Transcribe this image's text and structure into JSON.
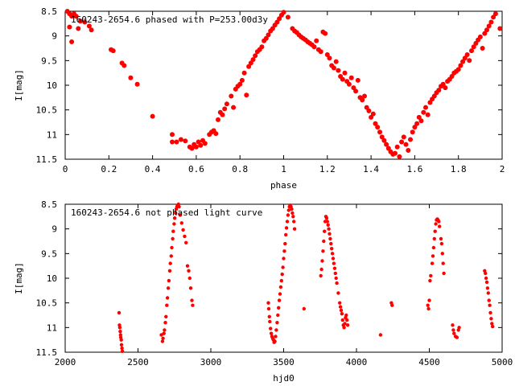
{
  "chart_data": [
    {
      "type": "scatter",
      "title": "160243-2654.6 phased with P=253.00d3y",
      "xlabel": "phase",
      "ylabel": "I[mag]",
      "xlim": [
        0,
        2
      ],
      "ylim": [
        11.5,
        8.5
      ],
      "y_inverted": true,
      "grid": false,
      "xticks": [
        "0",
        "0.2",
        "0.4",
        "0.6",
        "0.8",
        "1",
        "1.2",
        "1.4",
        "1.6",
        "1.8",
        "2"
      ],
      "yticks": [
        "8.5",
        "9",
        "9.5",
        "10",
        "10.5",
        "11",
        "11.5"
      ],
      "marker": "filled-circle",
      "color": "#ff0000",
      "points": [
        [
          0.01,
          8.5
        ],
        [
          0.02,
          8.55
        ],
        [
          0.03,
          8.6
        ],
        [
          0.04,
          8.55
        ],
        [
          0.05,
          8.6
        ],
        [
          0.02,
          8.82
        ],
        [
          0.03,
          9.12
        ],
        [
          0.06,
          8.85
        ],
        [
          0.07,
          8.7
        ],
        [
          0.09,
          8.72
        ],
        [
          0.11,
          8.8
        ],
        [
          0.12,
          8.88
        ],
        [
          0.21,
          9.28
        ],
        [
          0.22,
          9.3
        ],
        [
          0.26,
          9.55
        ],
        [
          0.27,
          9.6
        ],
        [
          0.3,
          9.85
        ],
        [
          0.33,
          9.98
        ],
        [
          0.4,
          10.63
        ],
        [
          0.49,
          11.0
        ],
        [
          0.49,
          11.15
        ],
        [
          0.51,
          11.15
        ],
        [
          0.53,
          11.1
        ],
        [
          0.55,
          11.13
        ],
        [
          0.57,
          11.25
        ],
        [
          0.58,
          11.28
        ],
        [
          0.59,
          11.2
        ],
        [
          0.6,
          11.25
        ],
        [
          0.61,
          11.15
        ],
        [
          0.62,
          11.22
        ],
        [
          0.63,
          11.12
        ],
        [
          0.64,
          11.18
        ],
        [
          0.66,
          11.0
        ],
        [
          0.67,
          10.95
        ],
        [
          0.68,
          10.92
        ],
        [
          0.69,
          10.98
        ],
        [
          0.7,
          10.7
        ],
        [
          0.71,
          10.55
        ],
        [
          0.72,
          10.6
        ],
        [
          0.73,
          10.48
        ],
        [
          0.74,
          10.38
        ],
        [
          0.76,
          10.22
        ],
        [
          0.77,
          10.45
        ],
        [
          0.78,
          10.08
        ],
        [
          0.79,
          10.02
        ],
        [
          0.8,
          9.98
        ],
        [
          0.81,
          9.9
        ],
        [
          0.82,
          9.75
        ],
        [
          0.83,
          10.2
        ],
        [
          0.84,
          9.62
        ],
        [
          0.85,
          9.55
        ],
        [
          0.86,
          9.48
        ],
        [
          0.87,
          9.4
        ],
        [
          0.88,
          9.32
        ],
        [
          0.89,
          9.28
        ],
        [
          0.9,
          9.22
        ],
        [
          0.91,
          9.1
        ],
        [
          0.92,
          9.05
        ],
        [
          0.93,
          8.98
        ],
        [
          0.94,
          8.9
        ],
        [
          0.95,
          8.85
        ],
        [
          0.96,
          8.78
        ],
        [
          0.97,
          8.72
        ],
        [
          0.98,
          8.65
        ],
        [
          0.99,
          8.58
        ],
        [
          1.0,
          8.52
        ],
        [
          1.02,
          8.62
        ],
        [
          1.04,
          8.85
        ],
        [
          1.05,
          8.9
        ],
        [
          1.06,
          8.93
        ],
        [
          1.07,
          8.98
        ],
        [
          1.08,
          9.02
        ],
        [
          1.09,
          9.05
        ],
        [
          1.1,
          9.08
        ],
        [
          1.11,
          9.12
        ],
        [
          1.12,
          9.15
        ],
        [
          1.13,
          9.18
        ],
        [
          1.14,
          9.22
        ],
        [
          1.15,
          9.1
        ],
        [
          1.16,
          9.28
        ],
        [
          1.17,
          9.32
        ],
        [
          1.18,
          8.92
        ],
        [
          1.19,
          8.95
        ],
        [
          1.2,
          9.38
        ],
        [
          1.21,
          9.45
        ],
        [
          1.22,
          9.6
        ],
        [
          1.23,
          9.65
        ],
        [
          1.24,
          9.52
        ],
        [
          1.25,
          9.7
        ],
        [
          1.26,
          9.82
        ],
        [
          1.27,
          9.88
        ],
        [
          1.28,
          9.75
        ],
        [
          1.29,
          9.92
        ],
        [
          1.3,
          9.98
        ],
        [
          1.31,
          9.85
        ],
        [
          1.32,
          10.05
        ],
        [
          1.33,
          10.12
        ],
        [
          1.34,
          9.9
        ],
        [
          1.35,
          10.25
        ],
        [
          1.36,
          10.3
        ],
        [
          1.37,
          10.22
        ],
        [
          1.38,
          10.45
        ],
        [
          1.39,
          10.52
        ],
        [
          1.4,
          10.65
        ],
        [
          1.41,
          10.58
        ],
        [
          1.42,
          10.78
        ],
        [
          1.43,
          10.85
        ],
        [
          1.44,
          10.95
        ],
        [
          1.45,
          11.05
        ],
        [
          1.46,
          11.12
        ],
        [
          1.47,
          11.2
        ],
        [
          1.48,
          11.28
        ],
        [
          1.49,
          11.35
        ],
        [
          1.5,
          11.4
        ],
        [
          1.51,
          11.38
        ],
        [
          1.52,
          11.25
        ],
        [
          1.53,
          11.45
        ],
        [
          1.54,
          11.15
        ],
        [
          1.55,
          11.05
        ],
        [
          1.56,
          11.2
        ],
        [
          1.57,
          11.32
        ],
        [
          1.58,
          11.1
        ],
        [
          1.59,
          10.95
        ],
        [
          1.6,
          10.85
        ],
        [
          1.61,
          10.78
        ],
        [
          1.62,
          10.65
        ],
        [
          1.63,
          10.72
        ],
        [
          1.64,
          10.55
        ],
        [
          1.65,
          10.45
        ],
        [
          1.66,
          10.6
        ],
        [
          1.67,
          10.35
        ],
        [
          1.68,
          10.28
        ],
        [
          1.69,
          10.22
        ],
        [
          1.7,
          10.15
        ],
        [
          1.71,
          10.1
        ],
        [
          1.72,
          10.02
        ],
        [
          1.73,
          9.98
        ],
        [
          1.74,
          10.05
        ],
        [
          1.75,
          9.92
        ],
        [
          1.76,
          9.88
        ],
        [
          1.77,
          9.82
        ],
        [
          1.78,
          9.75
        ],
        [
          1.79,
          9.72
        ],
        [
          1.8,
          9.68
        ],
        [
          1.81,
          9.6
        ],
        [
          1.82,
          9.52
        ],
        [
          1.83,
          9.45
        ],
        [
          1.84,
          9.38
        ],
        [
          1.85,
          9.5
        ],
        [
          1.86,
          9.3
        ],
        [
          1.87,
          9.22
        ],
        [
          1.88,
          9.15
        ],
        [
          1.89,
          9.08
        ],
        [
          1.9,
          9.02
        ],
        [
          1.91,
          9.25
        ],
        [
          1.92,
          8.95
        ],
        [
          1.93,
          8.88
        ],
        [
          1.94,
          8.8
        ],
        [
          1.95,
          8.72
        ],
        [
          1.96,
          8.62
        ],
        [
          1.97,
          8.55
        ],
        [
          1.99,
          8.85
        ]
      ]
    },
    {
      "type": "scatter",
      "title": "160243-2654.6 not phased light curve",
      "xlabel": "hjd0",
      "ylabel": "I[mag]",
      "xlim": [
        2000,
        5000
      ],
      "ylim": [
        11.5,
        8.5
      ],
      "y_inverted": true,
      "grid": false,
      "xticks": [
        "2000",
        "2500",
        "3000",
        "3500",
        "4000",
        "4500",
        "5000"
      ],
      "yticks": [
        "8.5",
        "9",
        "9.5",
        "10",
        "10.5",
        "11",
        "11.5"
      ],
      "marker": "filled-circle",
      "color": "#ff0000",
      "points": [
        [
          2370,
          10.7
        ],
        [
          2373,
          10.95
        ],
        [
          2375,
          11.0
        ],
        [
          2378,
          11.08
        ],
        [
          2380,
          11.15
        ],
        [
          2382,
          11.2
        ],
        [
          2385,
          11.25
        ],
        [
          2387,
          11.35
        ],
        [
          2390,
          11.42
        ],
        [
          2393,
          11.48
        ],
        [
          2660,
          11.15
        ],
        [
          2668,
          11.28
        ],
        [
          2672,
          11.22
        ],
        [
          2678,
          11.12
        ],
        [
          2682,
          11.05
        ],
        [
          2688,
          10.9
        ],
        [
          2692,
          10.78
        ],
        [
          2698,
          10.55
        ],
        [
          2702,
          10.4
        ],
        [
          2708,
          10.2
        ],
        [
          2712,
          10.05
        ],
        [
          2718,
          9.85
        ],
        [
          2722,
          9.7
        ],
        [
          2728,
          9.55
        ],
        [
          2732,
          9.38
        ],
        [
          2738,
          9.2
        ],
        [
          2742,
          9.05
        ],
        [
          2748,
          8.9
        ],
        [
          2752,
          8.78
        ],
        [
          2758,
          8.68
        ],
        [
          2762,
          8.6
        ],
        [
          2768,
          8.55
        ],
        [
          2772,
          8.52
        ],
        [
          2778,
          8.5
        ],
        [
          2782,
          8.55
        ],
        [
          2790,
          8.72
        ],
        [
          2800,
          8.88
        ],
        [
          2810,
          9.02
        ],
        [
          2820,
          9.15
        ],
        [
          2830,
          9.28
        ],
        [
          2840,
          9.75
        ],
        [
          2848,
          9.85
        ],
        [
          2855,
          10.0
        ],
        [
          2862,
          10.2
        ],
        [
          2870,
          10.45
        ],
        [
          2875,
          10.55
        ],
        [
          3395,
          10.5
        ],
        [
          3398,
          10.62
        ],
        [
          3402,
          10.78
        ],
        [
          3405,
          10.88
        ],
        [
          3410,
          11.02
        ],
        [
          3415,
          11.12
        ],
        [
          3420,
          11.18
        ],
        [
          3425,
          11.22
        ],
        [
          3430,
          11.25
        ],
        [
          3435,
          11.3
        ],
        [
          3440,
          11.28
        ],
        [
          3445,
          11.18
        ],
        [
          3450,
          11.05
        ],
        [
          3455,
          10.9
        ],
        [
          3460,
          10.75
        ],
        [
          3465,
          10.6
        ],
        [
          3470,
          10.45
        ],
        [
          3475,
          10.32
        ],
        [
          3480,
          10.18
        ],
        [
          3485,
          10.05
        ],
        [
          3490,
          9.92
        ],
        [
          3495,
          9.78
        ],
        [
          3500,
          9.6
        ],
        [
          3505,
          9.45
        ],
        [
          3510,
          9.3
        ],
        [
          3515,
          9.12
        ],
        [
          3520,
          8.98
        ],
        [
          3525,
          8.85
        ],
        [
          3530,
          8.72
        ],
        [
          3535,
          8.62
        ],
        [
          3540,
          8.55
        ],
        [
          3545,
          8.52
        ],
        [
          3550,
          8.55
        ],
        [
          3555,
          8.6
        ],
        [
          3560,
          8.68
        ],
        [
          3565,
          8.75
        ],
        [
          3570,
          8.85
        ],
        [
          3575,
          9.0
        ],
        [
          3640,
          10.62
        ],
        [
          3755,
          9.95
        ],
        [
          3760,
          9.82
        ],
        [
          3765,
          9.65
        ],
        [
          3770,
          9.45
        ],
        [
          3775,
          9.25
        ],
        [
          3780,
          9.05
        ],
        [
          3785,
          8.85
        ],
        [
          3790,
          8.75
        ],
        [
          3795,
          8.78
        ],
        [
          3800,
          8.85
        ],
        [
          3805,
          8.92
        ],
        [
          3810,
          9.0
        ],
        [
          3815,
          9.1
        ],
        [
          3820,
          9.2
        ],
        [
          3825,
          9.3
        ],
        [
          3830,
          9.4
        ],
        [
          3835,
          9.5
        ],
        [
          3840,
          9.6
        ],
        [
          3845,
          9.7
        ],
        [
          3850,
          9.8
        ],
        [
          3855,
          9.9
        ],
        [
          3860,
          10.0
        ],
        [
          3865,
          10.1
        ],
        [
          3875,
          10.3
        ],
        [
          3885,
          10.5
        ],
        [
          3890,
          10.58
        ],
        [
          3895,
          10.65
        ],
        [
          3900,
          10.72
        ],
        [
          3905,
          10.85
        ],
        [
          3910,
          10.95
        ],
        [
          3915,
          11.0
        ],
        [
          3920,
          10.92
        ],
        [
          3925,
          10.8
        ],
        [
          3930,
          10.75
        ],
        [
          3935,
          10.85
        ],
        [
          3940,
          10.95
        ],
        [
          4165,
          11.15
        ],
        [
          4240,
          10.5
        ],
        [
          4245,
          10.55
        ],
        [
          4490,
          10.55
        ],
        [
          4495,
          10.62
        ],
        [
          4500,
          10.45
        ],
        [
          4505,
          10.05
        ],
        [
          4510,
          9.95
        ],
        [
          4520,
          9.7
        ],
        [
          4525,
          9.55
        ],
        [
          4530,
          9.38
        ],
        [
          4535,
          9.2
        ],
        [
          4540,
          9.05
        ],
        [
          4545,
          8.9
        ],
        [
          4550,
          8.82
        ],
        [
          4555,
          8.8
        ],
        [
          4560,
          8.82
        ],
        [
          4565,
          8.85
        ],
        [
          4570,
          8.95
        ],
        [
          4580,
          9.2
        ],
        [
          4585,
          9.3
        ],
        [
          4590,
          9.5
        ],
        [
          4595,
          9.7
        ],
        [
          4600,
          9.9
        ],
        [
          4660,
          10.95
        ],
        [
          4665,
          11.05
        ],
        [
          4670,
          11.12
        ],
        [
          4680,
          11.18
        ],
        [
          4690,
          11.2
        ],
        [
          4700,
          11.05
        ],
        [
          4705,
          11.0
        ],
        [
          4880,
          9.85
        ],
        [
          4885,
          9.9
        ],
        [
          4890,
          10.0
        ],
        [
          4895,
          10.08
        ],
        [
          4900,
          10.2
        ],
        [
          4905,
          10.3
        ],
        [
          4910,
          10.45
        ],
        [
          4915,
          10.55
        ],
        [
          4920,
          10.7
        ],
        [
          4925,
          10.82
        ],
        [
          4930,
          10.92
        ],
        [
          4935,
          10.98
        ]
      ]
    }
  ]
}
